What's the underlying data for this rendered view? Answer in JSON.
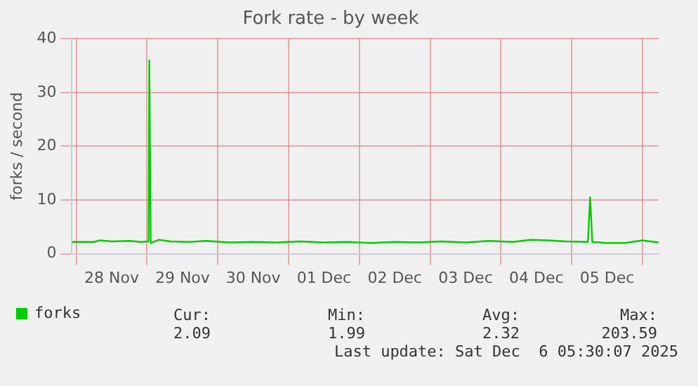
{
  "chart_data": {
    "type": "line",
    "title": "Fork rate - by week",
    "ylabel": "forks / second",
    "xlim": [
      "2025-11-27T22:30",
      "2025-12-06T05:30"
    ],
    "xticks": [
      {
        "value": "2025-11-28T00:00",
        "label": null
      },
      {
        "value": "2025-11-28T12:00",
        "label": "28 Nov"
      },
      {
        "value": "2025-11-29T00:00",
        "label": null
      },
      {
        "value": "2025-11-29T12:00",
        "label": "29 Nov"
      },
      {
        "value": "2025-11-30T00:00",
        "label": null
      },
      {
        "value": "2025-11-30T12:00",
        "label": "30 Nov"
      },
      {
        "value": "2025-12-01T00:00",
        "label": null
      },
      {
        "value": "2025-12-01T12:00",
        "label": "01 Dec"
      },
      {
        "value": "2025-12-02T00:00",
        "label": null
      },
      {
        "value": "2025-12-02T12:00",
        "label": "02 Dec"
      },
      {
        "value": "2025-12-03T00:00",
        "label": null
      },
      {
        "value": "2025-12-03T12:00",
        "label": "03 Dec"
      },
      {
        "value": "2025-12-04T00:00",
        "label": null
      },
      {
        "value": "2025-12-04T12:00",
        "label": "04 Dec"
      },
      {
        "value": "2025-12-05T00:00",
        "label": null
      },
      {
        "value": "2025-12-05T12:00",
        "label": "05 Dec"
      },
      {
        "value": "2025-12-06T00:00",
        "label": null
      }
    ],
    "ylim": [
      0,
      40
    ],
    "yticks": [
      0,
      10,
      20,
      30,
      40
    ],
    "grid": true,
    "legend": "bottom left",
    "marker": "none",
    "line_style": "solid",
    "x": [
      "2025-11-27T22:30",
      "2025-11-28T03:00",
      "2025-11-28T06:00",
      "2025-11-28T08:00",
      "2025-11-28T12:00",
      "2025-11-28T18:00",
      "2025-11-28T22:00",
      "2025-11-29T00:30",
      "2025-11-29T00:45",
      "2025-11-29T01:15",
      "2025-11-29T04:00",
      "2025-11-29T08:00",
      "2025-11-29T14:00",
      "2025-11-29T20:00",
      "2025-11-30T04:00",
      "2025-11-30T12:00",
      "2025-11-30T20:00",
      "2025-12-01T04:00",
      "2025-12-01T12:00",
      "2025-12-01T20:00",
      "2025-12-02T04:00",
      "2025-12-02T12:00",
      "2025-12-02T20:00",
      "2025-12-03T04:00",
      "2025-12-03T12:00",
      "2025-12-03T20:00",
      "2025-12-04T04:00",
      "2025-12-04T10:00",
      "2025-12-04T16:00",
      "2025-12-04T22:00",
      "2025-12-05T05:30",
      "2025-12-05T06:15",
      "2025-12-05T07:00",
      "2025-12-05T12:00",
      "2025-12-05T18:00",
      "2025-12-06T00:00",
      "2025-12-06T05:30"
    ],
    "series": [
      {
        "name": "forks",
        "color": "#00cc00",
        "values": [
          2.2,
          2.2,
          2.2,
          2.5,
          2.3,
          2.4,
          2.2,
          2.3,
          36,
          2.0,
          2.6,
          2.3,
          2.2,
          2.4,
          2.1,
          2.2,
          2.1,
          2.3,
          2.1,
          2.2,
          2.0,
          2.2,
          2.1,
          2.3,
          2.1,
          2.4,
          2.2,
          2.6,
          2.5,
          2.3,
          2.2,
          10.5,
          2.2,
          2.0,
          2.0,
          2.5,
          2.1
        ]
      }
    ],
    "annotations": [
      "Cur:",
      "Min:",
      "Avg:",
      "Max:",
      "2.09",
      "1.99",
      "2.32",
      "203.59",
      "Last update: Sat Dec  6 05:30:07 2025"
    ]
  }
}
